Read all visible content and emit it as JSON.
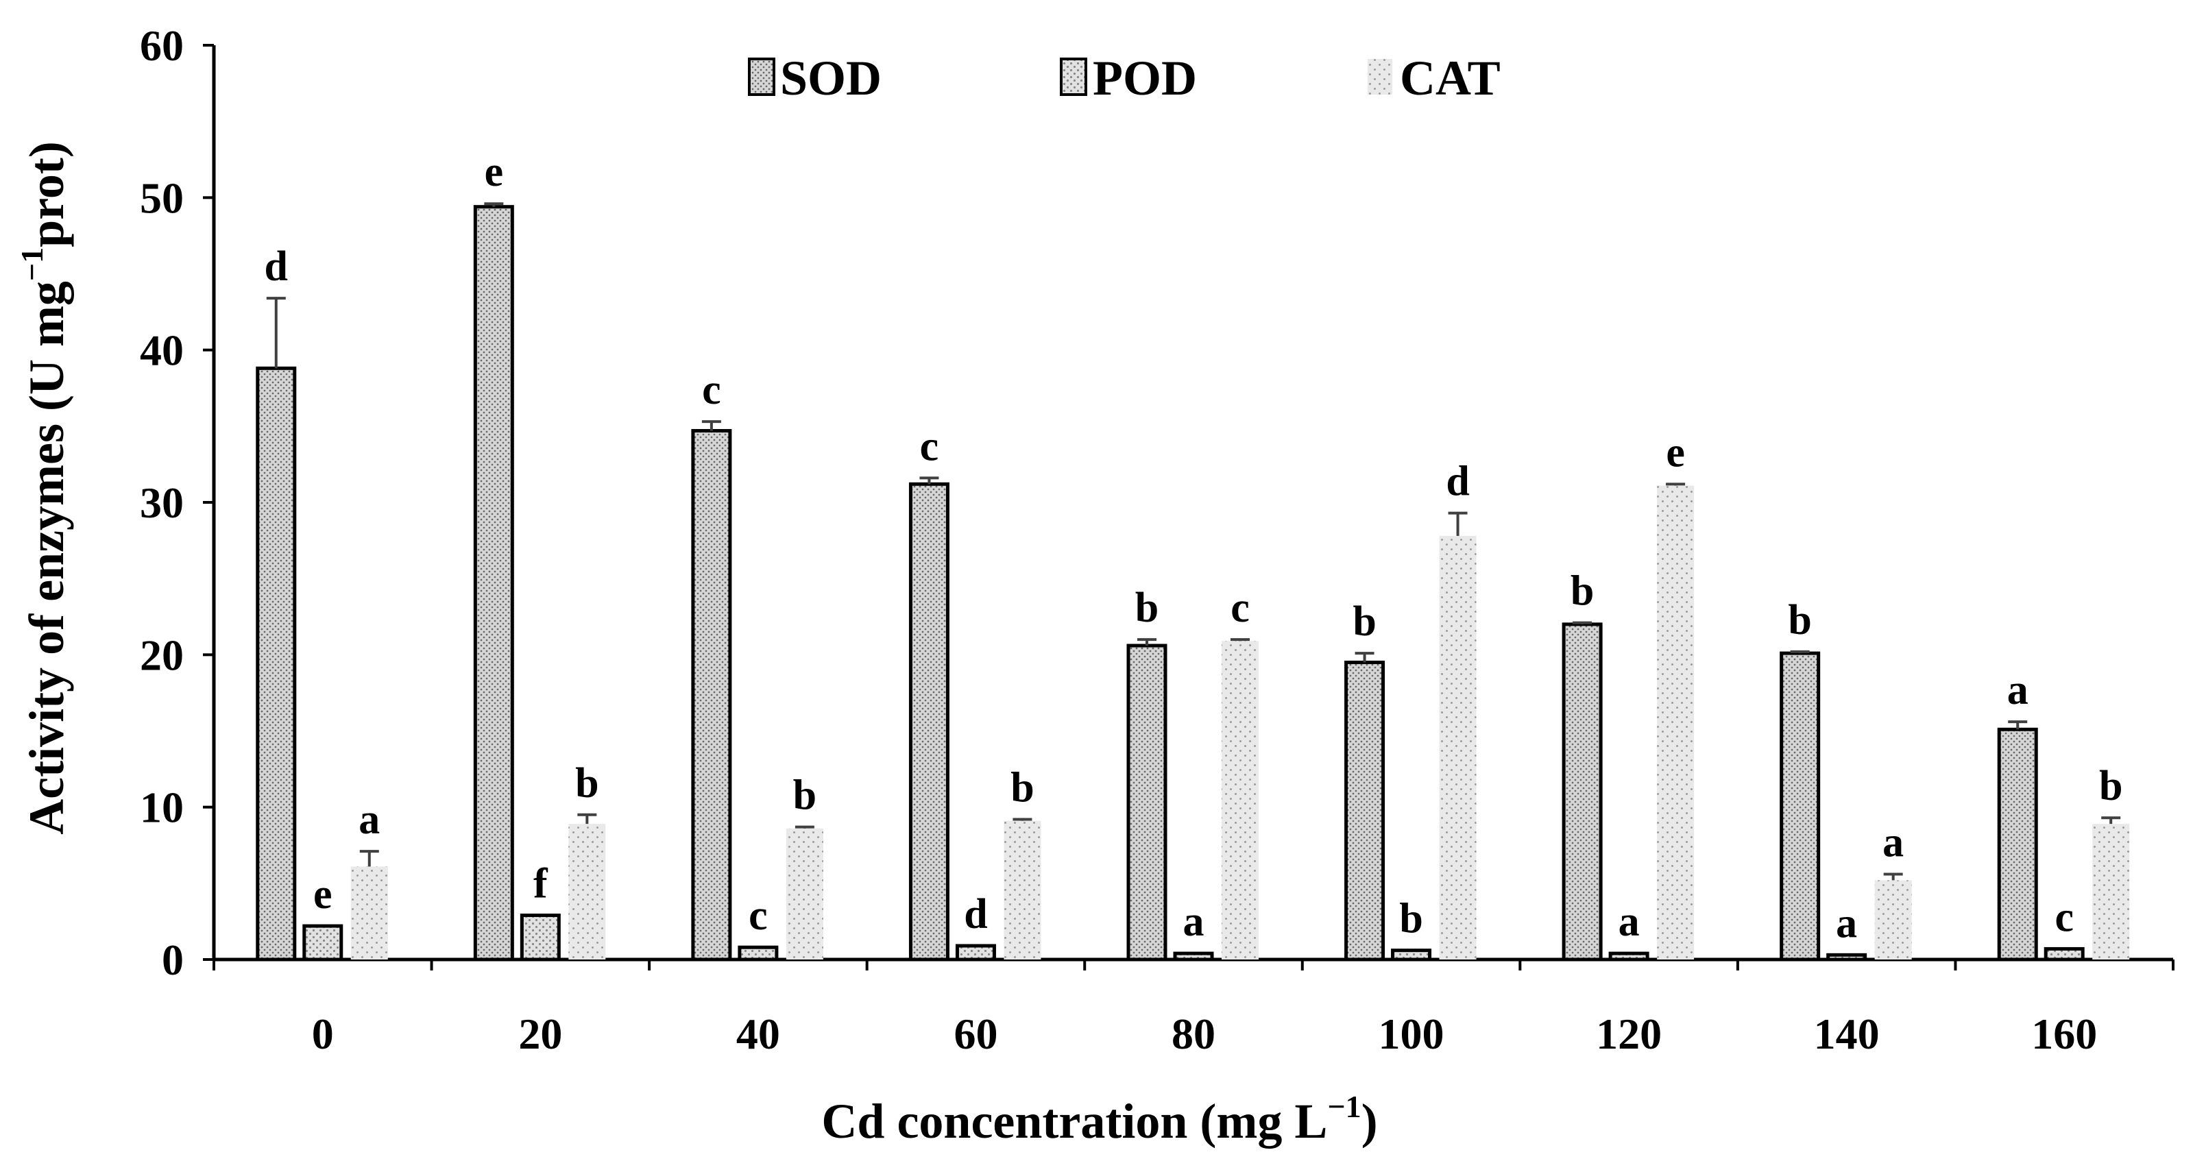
{
  "chart_data": {
    "type": "bar",
    "title": "",
    "xlabel": "Cd concentration (mg L",
    "xlabel_sup": "−1",
    "xlabel_suffix": ")",
    "ylabel": "Activity of enzymes (U mg",
    "ylabel_sup": "−1",
    "ylabel_suffix": "prot)",
    "ylim": [
      0,
      60
    ],
    "yticks": [
      0,
      10,
      20,
      30,
      40,
      50,
      60
    ],
    "categories": [
      "0",
      "20",
      "40",
      "60",
      "80",
      "100",
      "120",
      "140",
      "160"
    ],
    "legend_position": "top-center",
    "series": [
      {
        "name": "SOD",
        "values": [
          38.8,
          49.4,
          34.7,
          31.2,
          20.6,
          19.5,
          22.0,
          20.1,
          15.1
        ],
        "errors": [
          4.6,
          0.2,
          0.6,
          0.4,
          0.4,
          0.6,
          0.1,
          0.1,
          0.5
        ],
        "letters": [
          "d",
          "e",
          "c",
          "c",
          "b",
          "b",
          "b",
          "b",
          "a"
        ]
      },
      {
        "name": "POD",
        "values": [
          2.2,
          2.9,
          0.8,
          0.9,
          0.4,
          0.6,
          0.4,
          0.3,
          0.7
        ],
        "errors": [
          0,
          0,
          0,
          0,
          0,
          0,
          0,
          0,
          0
        ],
        "letters": [
          "e",
          "f",
          "c",
          "d",
          "a",
          "b",
          "a",
          "a",
          "c"
        ]
      },
      {
        "name": "CAT",
        "values": [
          6.1,
          8.9,
          8.6,
          9.1,
          20.9,
          27.8,
          31.1,
          5.2,
          8.9
        ],
        "errors": [
          1.0,
          0.6,
          0.1,
          0.1,
          0.1,
          1.5,
          0.1,
          0.4,
          0.4
        ],
        "letters": [
          "a",
          "b",
          "b",
          "b",
          "c",
          "d",
          "e",
          "a",
          "b"
        ]
      }
    ]
  },
  "colors": {
    "axis": "#000000",
    "bar_outline": "#000000",
    "sod_fill": "#d3d3d3",
    "pod_fill": "#dcdcdc",
    "cat_fill": "#e6e6e6",
    "error_bar": "#404040"
  }
}
